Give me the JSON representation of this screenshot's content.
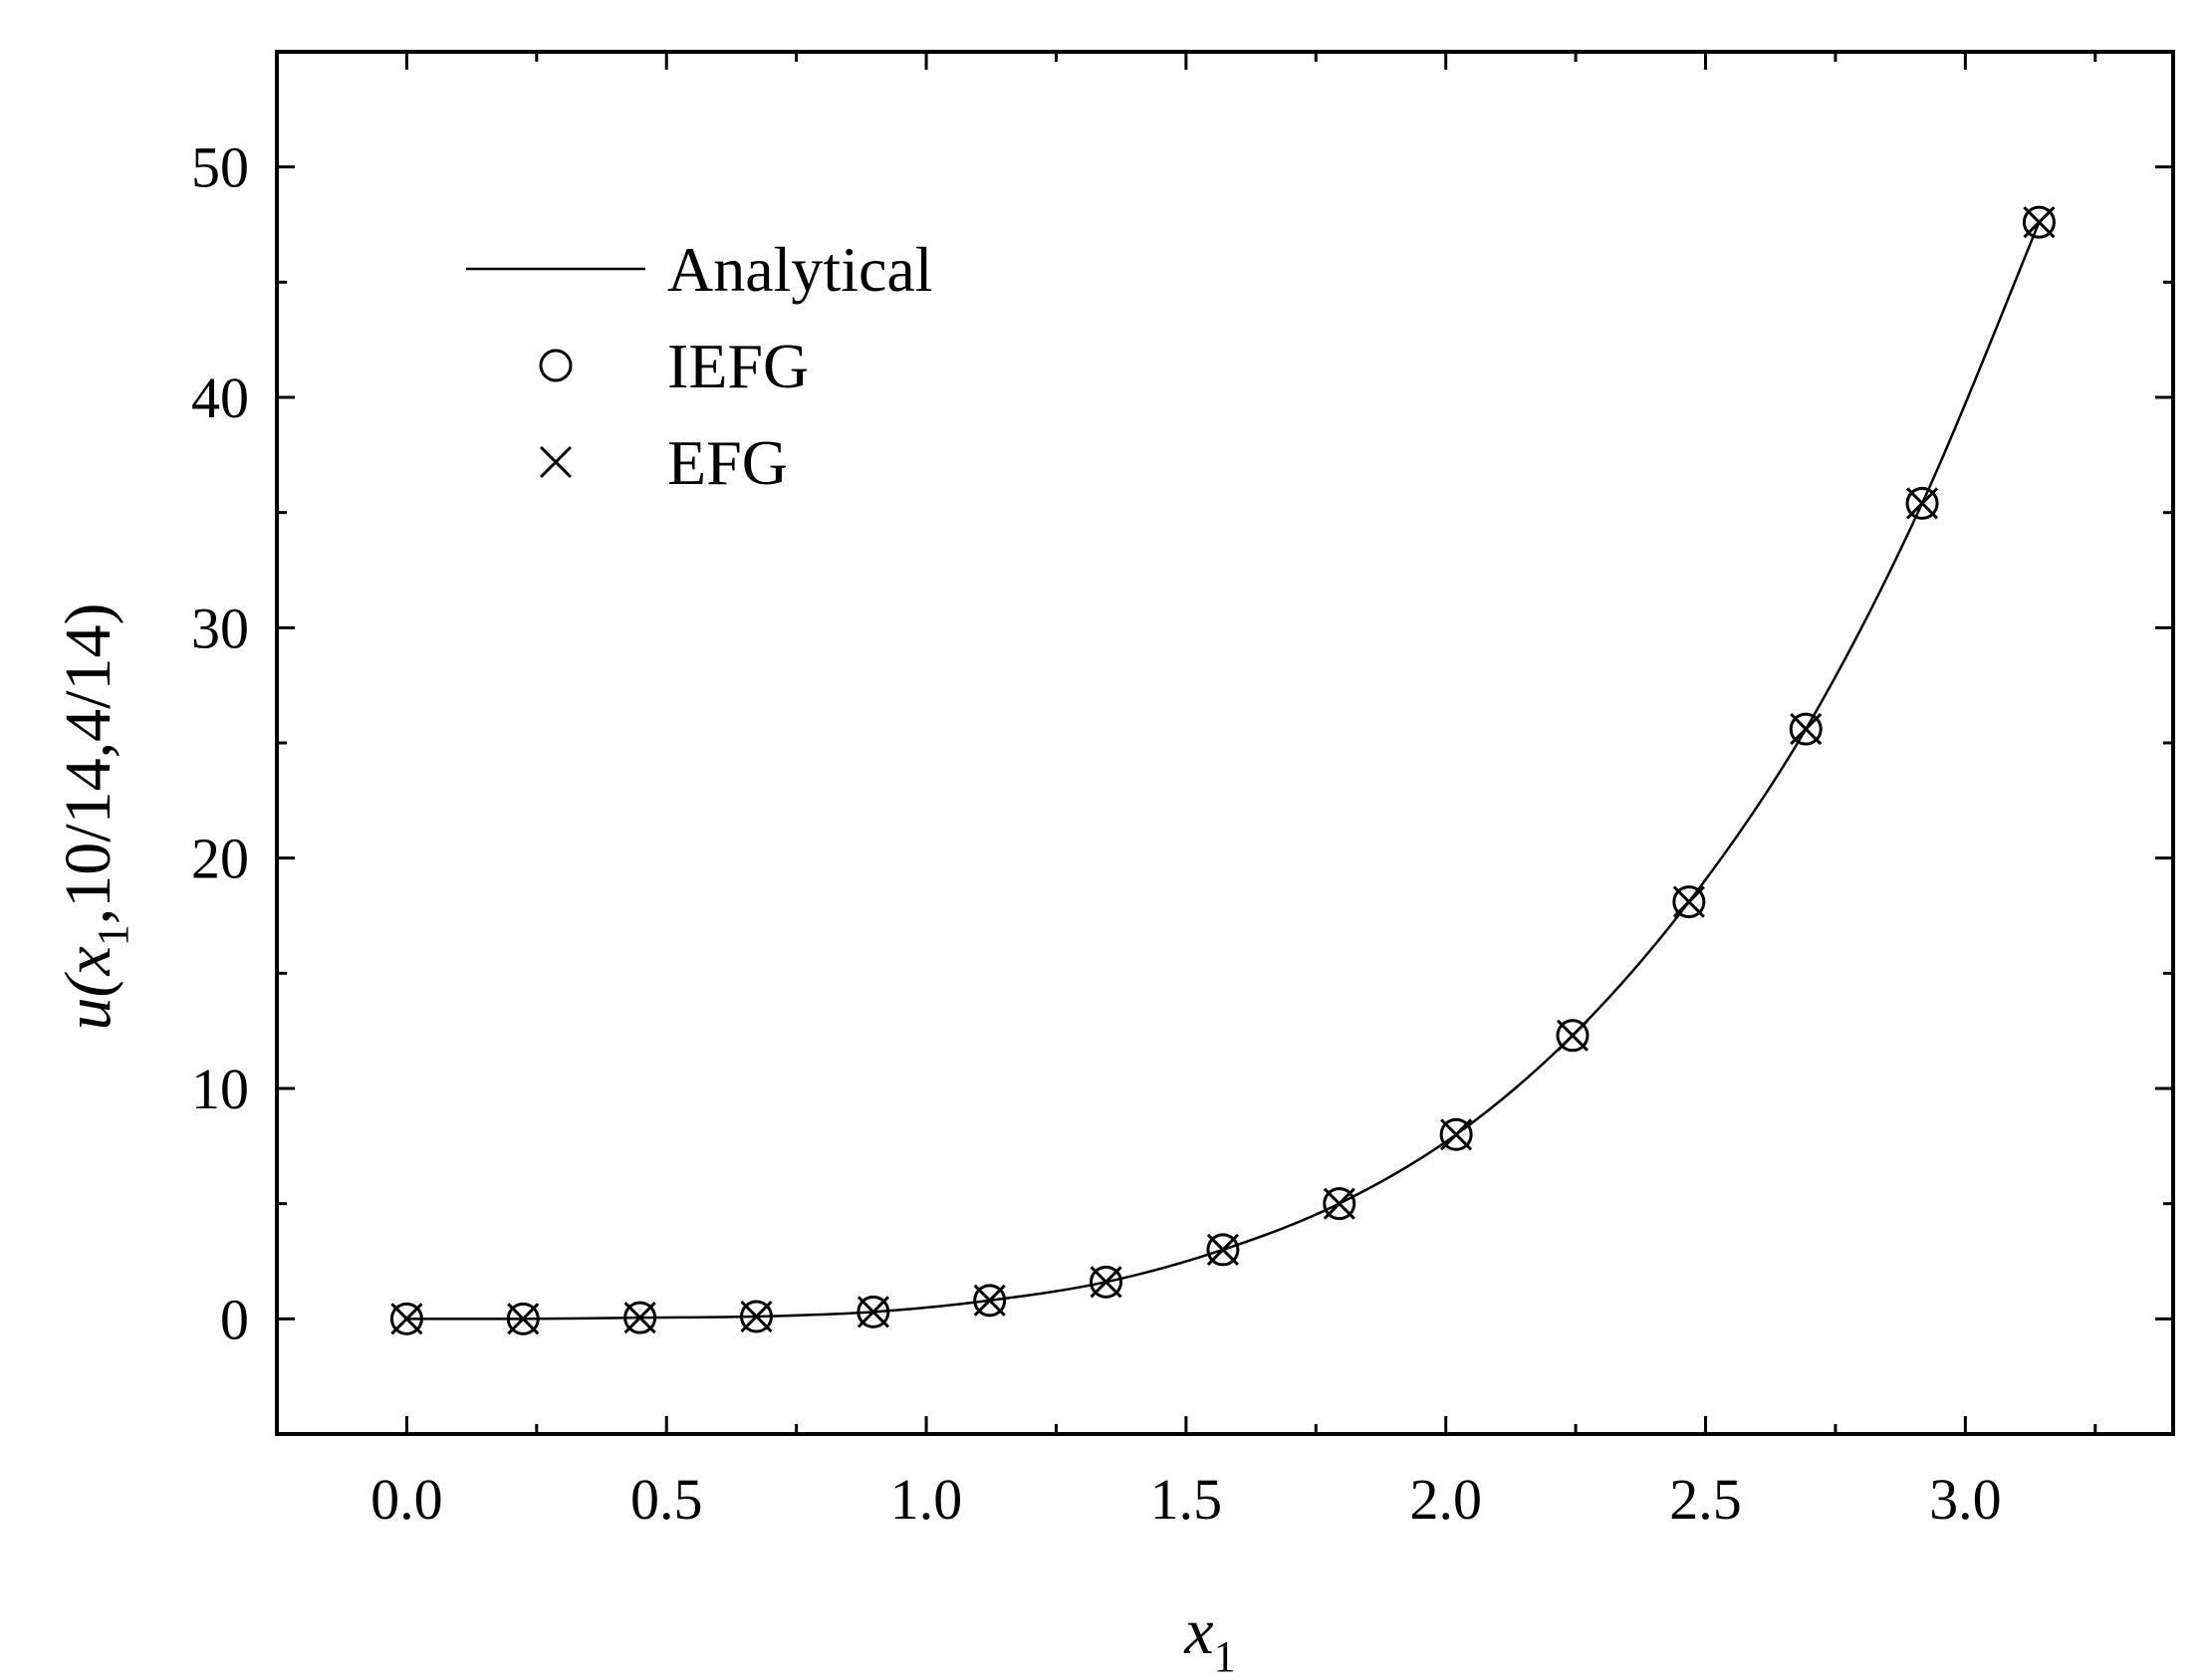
{
  "chart_data": {
    "type": "line",
    "title": "",
    "xlabel": {
      "main": "x",
      "sub": "1"
    },
    "ylabel": {
      "prefix": "u(",
      "var": "x",
      "sub": "1",
      "suffix": ",10/14,4/14)"
    },
    "xlim": [
      -0.25,
      3.4
    ],
    "ylim": [
      -5,
      55
    ],
    "x_ticks": [
      0.0,
      0.5,
      1.0,
      1.5,
      2.0,
      2.5,
      3.0
    ],
    "x_tick_labels": [
      "0.0",
      "0.5",
      "1.0",
      "1.5",
      "2.0",
      "2.5",
      "3.0"
    ],
    "x_minor_ticks": [
      0.25,
      0.75,
      1.25,
      1.75,
      2.25,
      2.75,
      3.25
    ],
    "y_ticks": [
      0,
      10,
      20,
      30,
      40,
      50
    ],
    "y_tick_labels": [
      "0",
      "10",
      "20",
      "30",
      "40",
      "50"
    ],
    "y_minor_ticks": [
      -5,
      5,
      15,
      25,
      35,
      45
    ],
    "grid": false,
    "legend_position": "top-left",
    "series": [
      {
        "name": "Analytical",
        "style": "line",
        "x": [
          0,
          0.224,
          0.449,
          0.673,
          0.898,
          1.122,
          1.346,
          1.571,
          1.795,
          2.02,
          2.244,
          2.468,
          2.693,
          2.917,
          3.142
        ],
        "values": [
          0.0,
          0.0,
          0.05,
          0.1,
          0.3,
          0.8,
          1.6,
          3.0,
          5.0,
          8.0,
          12.3,
          18.1,
          25.6,
          35.4,
          47.6
        ]
      },
      {
        "name": "IEFG",
        "style": "circle",
        "x": [
          0,
          0.224,
          0.449,
          0.673,
          0.898,
          1.122,
          1.346,
          1.571,
          1.795,
          2.02,
          2.244,
          2.468,
          2.693,
          2.917,
          3.142
        ],
        "values": [
          0.0,
          0.0,
          0.05,
          0.1,
          0.3,
          0.8,
          1.6,
          3.0,
          5.0,
          8.0,
          12.3,
          18.1,
          25.6,
          35.4,
          47.6
        ]
      },
      {
        "name": "EFG",
        "style": "cross",
        "x": [
          0,
          0.224,
          0.449,
          0.673,
          0.898,
          1.122,
          1.346,
          1.571,
          1.795,
          2.02,
          2.244,
          2.468,
          2.693,
          2.917,
          3.142
        ],
        "values": [
          0.0,
          0.0,
          0.05,
          0.1,
          0.3,
          0.8,
          1.6,
          3.0,
          5.0,
          8.0,
          12.3,
          18.1,
          25.6,
          35.4,
          47.6
        ]
      }
    ]
  }
}
